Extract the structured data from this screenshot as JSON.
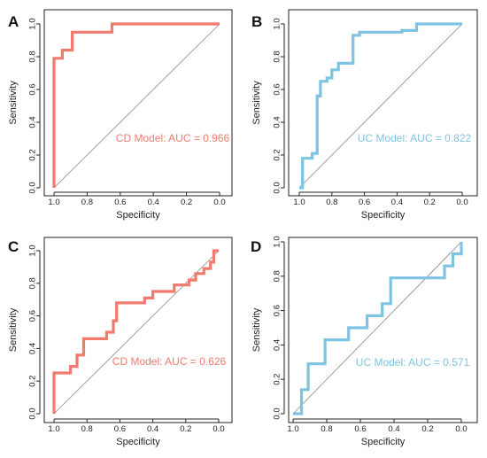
{
  "chart_data": [
    {
      "type": "line",
      "panel_letter": "A",
      "xlabel": "Specificity",
      "ylabel": "Sensitivity",
      "x_ticks": [
        "1.0",
        "0.8",
        "0.6",
        "0.4",
        "0.2",
        "0.0"
      ],
      "y_ticks": [
        "0.0",
        "0.2",
        "0.4",
        "0.6",
        "0.8",
        "1.0"
      ],
      "xlim": [
        1.0,
        0.0
      ],
      "ylim": [
        0.0,
        1.0
      ],
      "color": "#f07a6e",
      "annotation": "CD Model: AUC = 0.966",
      "series": [
        {
          "x": [
            1.0,
            1.0,
            0.95,
            0.95,
            0.89,
            0.89,
            0.65,
            0.65,
            0.0
          ],
          "y": [
            0.0,
            0.79,
            0.79,
            0.84,
            0.84,
            0.95,
            0.95,
            1.0,
            1.0
          ]
        }
      ]
    },
    {
      "type": "line",
      "panel_letter": "B",
      "xlabel": "Specificity",
      "ylabel": "Sensitivity",
      "x_ticks": [
        "1.0",
        "0.8",
        "0.6",
        "0.4",
        "0.2",
        "0.0"
      ],
      "y_ticks": [
        "0.0",
        "0.2",
        "0.4",
        "0.6",
        "0.8",
        "1.0"
      ],
      "xlim": [
        1.0,
        0.0
      ],
      "ylim": [
        0.0,
        1.0
      ],
      "color": "#7ec3e2",
      "annotation": "UC Model: AUC = 0.822",
      "series": [
        {
          "x": [
            1.0,
            0.98,
            0.98,
            0.92,
            0.92,
            0.89,
            0.89,
            0.87,
            0.87,
            0.83,
            0.83,
            0.8,
            0.8,
            0.76,
            0.76,
            0.67,
            0.67,
            0.63,
            0.63,
            0.37,
            0.37,
            0.28,
            0.28,
            0.0
          ],
          "y": [
            0.0,
            0.0,
            0.18,
            0.18,
            0.21,
            0.21,
            0.56,
            0.56,
            0.65,
            0.65,
            0.67,
            0.67,
            0.72,
            0.72,
            0.76,
            0.76,
            0.93,
            0.93,
            0.95,
            0.95,
            0.96,
            0.96,
            1.0,
            1.0
          ]
        }
      ]
    },
    {
      "type": "line",
      "panel_letter": "C",
      "xlabel": "Specificity",
      "ylabel": "Sensitivity",
      "x_ticks": [
        "1.0",
        "0.8",
        "0.6",
        "0.4",
        "0.2",
        "0.0"
      ],
      "y_ticks": [
        "0.0",
        "0.2",
        "0.4",
        "0.6",
        "0.8",
        "1.0"
      ],
      "xlim": [
        1.0,
        0.0
      ],
      "ylim": [
        0.0,
        1.0
      ],
      "color": "#f07a6e",
      "annotation": "CD Model: AUC = 0.626",
      "series": [
        {
          "x": [
            1.0,
            1.0,
            0.9,
            0.9,
            0.86,
            0.86,
            0.82,
            0.82,
            0.68,
            0.68,
            0.64,
            0.64,
            0.62,
            0.62,
            0.45,
            0.45,
            0.4,
            0.4,
            0.27,
            0.27,
            0.18,
            0.18,
            0.14,
            0.14,
            0.09,
            0.09,
            0.05,
            0.05,
            0.03,
            0.03,
            0.0
          ],
          "y": [
            0.0,
            0.25,
            0.25,
            0.29,
            0.29,
            0.36,
            0.36,
            0.46,
            0.46,
            0.5,
            0.5,
            0.57,
            0.57,
            0.68,
            0.68,
            0.71,
            0.71,
            0.75,
            0.75,
            0.79,
            0.79,
            0.82,
            0.82,
            0.86,
            0.86,
            0.89,
            0.89,
            0.93,
            0.93,
            1.0,
            1.0
          ]
        }
      ]
    },
    {
      "type": "line",
      "panel_letter": "D",
      "xlabel": "Specificity",
      "ylabel": "Sensitivity",
      "x_ticks": [
        "1.0",
        "0.8",
        "0.6",
        "0.4",
        "0.2",
        "0.0"
      ],
      "y_ticks": [
        "0.0",
        "0.2",
        "0.4",
        "0.6",
        "0.8",
        "1.0"
      ],
      "xlim": [
        1.0,
        0.0
      ],
      "ylim": [
        0.0,
        1.0
      ],
      "color": "#7ec3e2",
      "annotation": "UC Model: AUC = 0.571",
      "series": [
        {
          "x": [
            1.0,
            0.95,
            0.95,
            0.91,
            0.91,
            0.81,
            0.81,
            0.67,
            0.67,
            0.56,
            0.56,
            0.47,
            0.47,
            0.42,
            0.42,
            0.1,
            0.1,
            0.05,
            0.05,
            0.0,
            0.0
          ],
          "y": [
            0.0,
            0.0,
            0.14,
            0.14,
            0.29,
            0.29,
            0.43,
            0.43,
            0.5,
            0.5,
            0.57,
            0.57,
            0.64,
            0.64,
            0.79,
            0.79,
            0.86,
            0.86,
            0.93,
            0.93,
            1.0
          ]
        }
      ]
    }
  ]
}
